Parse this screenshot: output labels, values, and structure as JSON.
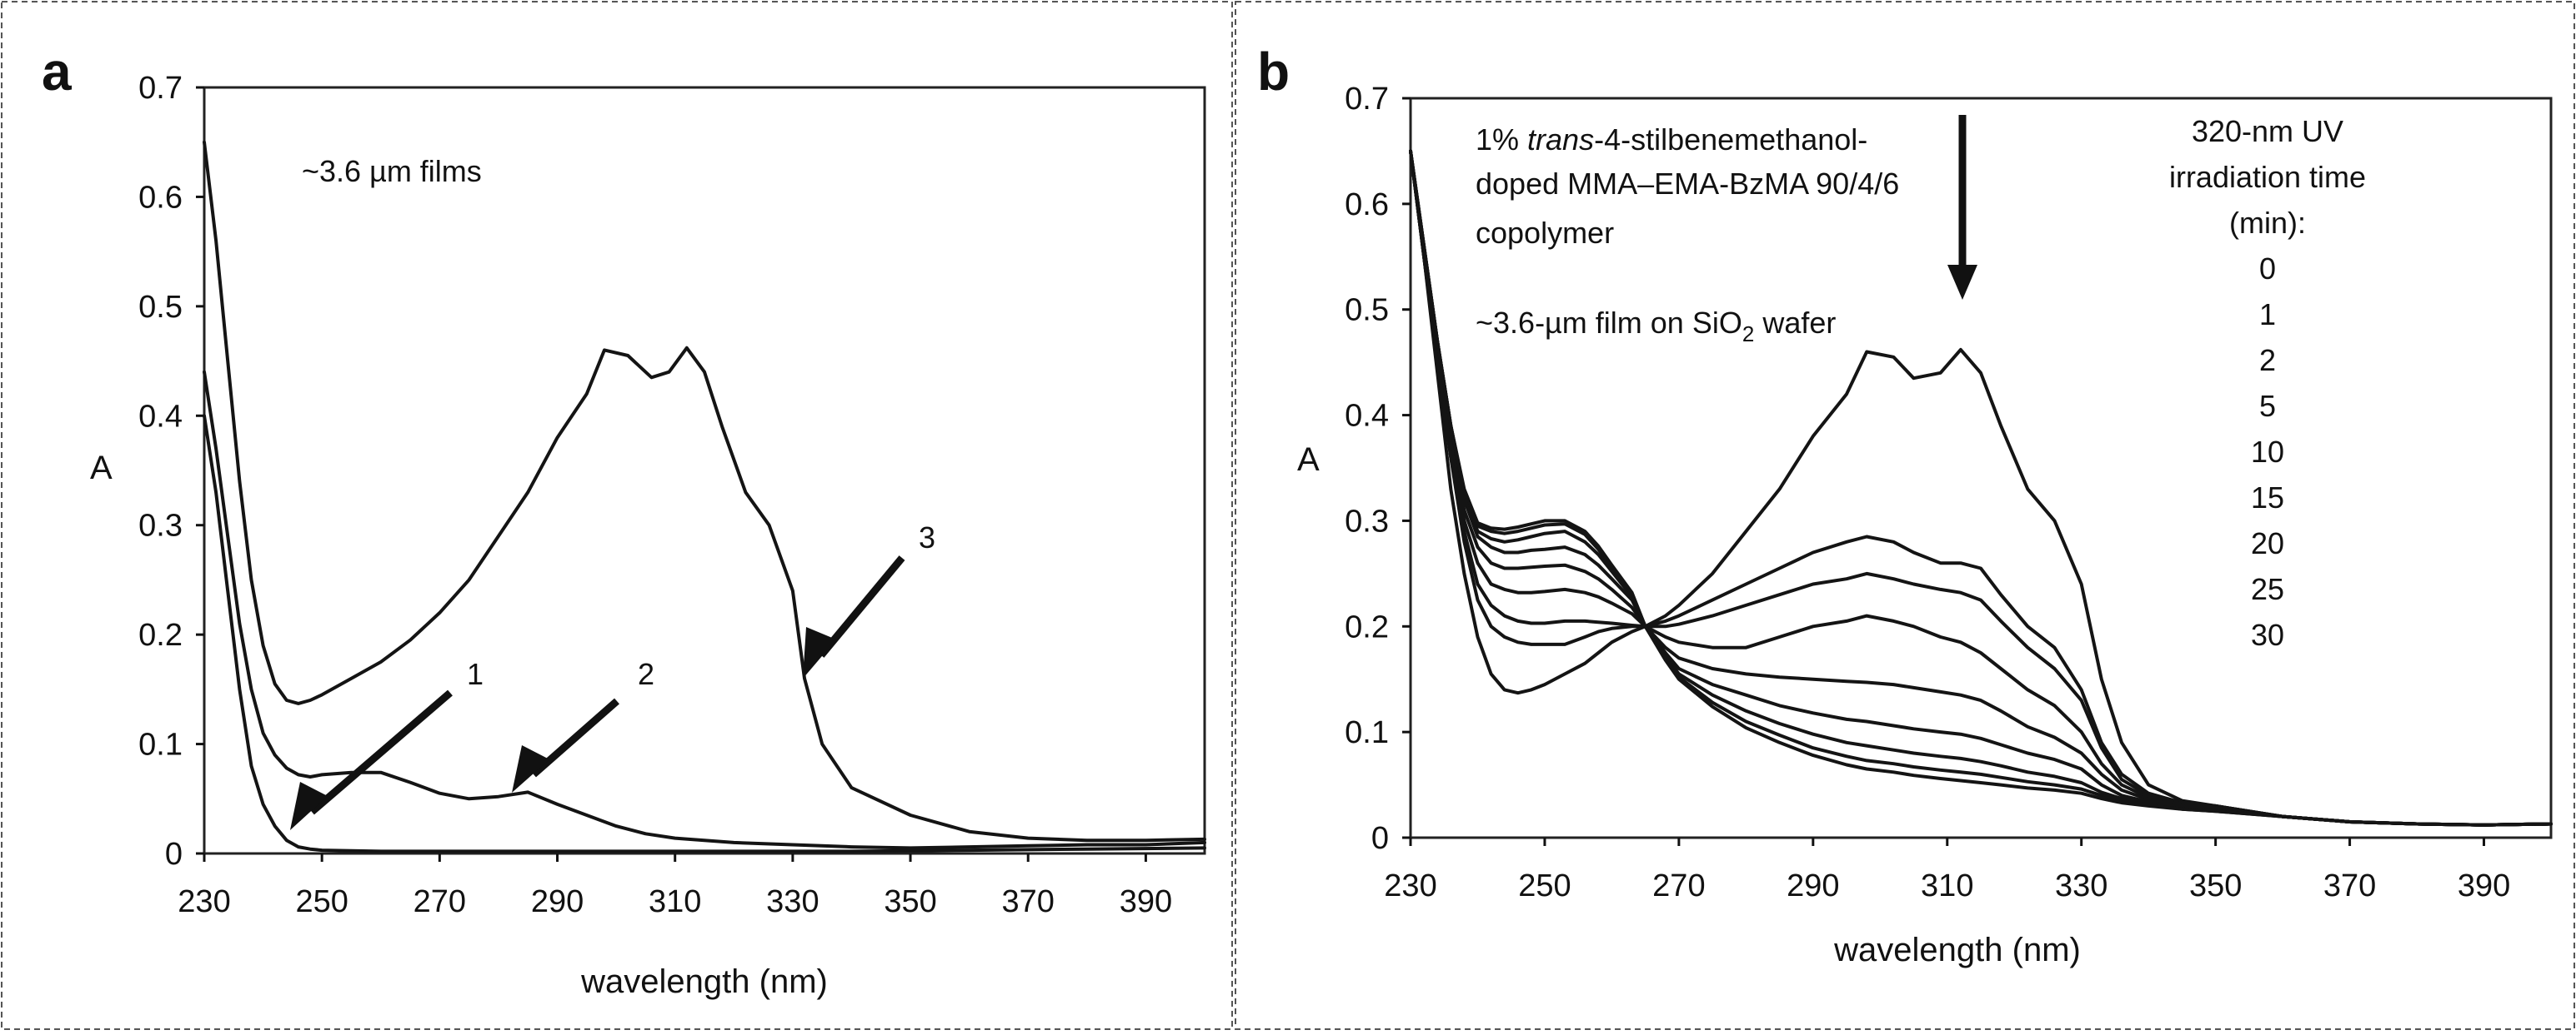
{
  "chart_data": [
    {
      "panel": "a",
      "type": "line",
      "xlabel": "wavelength (nm)",
      "ylabel": "A",
      "xlim": [
        230,
        400
      ],
      "ylim": [
        0,
        0.7
      ],
      "xticks": [
        230,
        250,
        270,
        290,
        310,
        330,
        350,
        370,
        390
      ],
      "yticks": [
        0,
        0.1,
        0.2,
        0.3,
        0.4,
        0.5,
        0.6,
        0.7
      ],
      "annotations": [
        {
          "text": "~3.6 µm films"
        },
        {
          "text": "1",
          "arrow_to": {
            "x": 245,
            "y": 0.02
          }
        },
        {
          "text": "2",
          "arrow_to": {
            "x": 283,
            "y": 0.055
          }
        },
        {
          "text": "3",
          "arrow_to": {
            "x": 332,
            "y": 0.16
          }
        }
      ],
      "series": [
        {
          "name": "1",
          "x": [
            230,
            232,
            234,
            236,
            238,
            240,
            242,
            244,
            246,
            248,
            250,
            260,
            280,
            300,
            320,
            340,
            360,
            380,
            400
          ],
          "y": [
            0.4,
            0.33,
            0.24,
            0.15,
            0.08,
            0.045,
            0.025,
            0.012,
            0.006,
            0.004,
            0.003,
            0.002,
            0.002,
            0.002,
            0.002,
            0.002,
            0.003,
            0.004,
            0.005
          ]
        },
        {
          "name": "2",
          "x": [
            230,
            232,
            234,
            236,
            238,
            240,
            242,
            244,
            246,
            248,
            250,
            255,
            260,
            265,
            270,
            275,
            280,
            285,
            290,
            295,
            300,
            305,
            310,
            320,
            330,
            340,
            350,
            360,
            370,
            380,
            390,
            400
          ],
          "y": [
            0.44,
            0.37,
            0.29,
            0.21,
            0.15,
            0.11,
            0.09,
            0.078,
            0.072,
            0.07,
            0.072,
            0.074,
            0.074,
            0.065,
            0.055,
            0.05,
            0.052,
            0.056,
            0.045,
            0.035,
            0.025,
            0.018,
            0.014,
            0.01,
            0.008,
            0.006,
            0.005,
            0.006,
            0.007,
            0.008,
            0.008,
            0.01
          ]
        },
        {
          "name": "3",
          "x": [
            230,
            232,
            234,
            236,
            238,
            240,
            242,
            244,
            246,
            248,
            250,
            255,
            260,
            265,
            270,
            275,
            280,
            285,
            290,
            295,
            298,
            302,
            306,
            309,
            312,
            315,
            318,
            322,
            326,
            330,
            332,
            335,
            340,
            350,
            360,
            370,
            380,
            390,
            400
          ],
          "y": [
            0.65,
            0.56,
            0.45,
            0.34,
            0.25,
            0.19,
            0.155,
            0.14,
            0.137,
            0.14,
            0.145,
            0.16,
            0.175,
            0.195,
            0.22,
            0.25,
            0.29,
            0.33,
            0.38,
            0.42,
            0.46,
            0.455,
            0.435,
            0.44,
            0.462,
            0.44,
            0.39,
            0.33,
            0.3,
            0.24,
            0.16,
            0.1,
            0.06,
            0.035,
            0.02,
            0.014,
            0.012,
            0.012,
            0.013
          ]
        }
      ]
    },
    {
      "panel": "b",
      "type": "line",
      "xlabel": "wavelength (nm)",
      "ylabel": "A",
      "xlim": [
        230,
        400
      ],
      "ylim": [
        0,
        0.7
      ],
      "xticks": [
        230,
        250,
        270,
        290,
        310,
        330,
        350,
        370,
        390
      ],
      "yticks": [
        0,
        0.1,
        0.2,
        0.3,
        0.4,
        0.5,
        0.6,
        0.7
      ],
      "annotations": [
        {
          "lines": [
            "1% |trans|-4-stilbenemethanol-",
            "doped MMA–EMA-BzMA 90/4/6",
            "copolymer"
          ]
        },
        {
          "text": "~3.6-µm film on SiO",
          "subscript": "2",
          "suffix": " wafer"
        },
        {
          "arrow_to": {
            "x": 312,
            "y": 0.5
          }
        }
      ],
      "legend": {
        "title": [
          "320-nm UV",
          "irradiation time",
          "(min):"
        ],
        "items": [
          "0",
          "1",
          "2",
          "5",
          "10",
          "15",
          "20",
          "25",
          "30"
        ]
      },
      "shared_x": [
        230,
        232,
        234,
        236,
        238,
        240,
        242,
        244,
        246,
        248,
        250,
        253,
        256,
        258,
        260,
        263,
        265,
        268,
        270,
        275,
        280,
        285,
        290,
        295,
        298,
        302,
        305,
        309,
        312,
        315,
        318,
        322,
        326,
        330,
        333,
        336,
        340,
        345,
        350,
        360,
        370,
        380,
        390,
        400
      ],
      "series": [
        {
          "name": "0",
          "y": [
            0.65,
            0.55,
            0.44,
            0.33,
            0.25,
            0.19,
            0.155,
            0.14,
            0.137,
            0.14,
            0.145,
            0.155,
            0.165,
            0.175,
            0.185,
            0.195,
            0.2,
            0.21,
            0.22,
            0.25,
            0.29,
            0.33,
            0.38,
            0.42,
            0.46,
            0.455,
            0.435,
            0.44,
            0.462,
            0.44,
            0.39,
            0.33,
            0.3,
            0.24,
            0.15,
            0.09,
            0.05,
            0.035,
            0.03,
            0.02,
            0.015,
            0.013,
            0.012,
            0.013
          ]
        },
        {
          "name": "1",
          "y": [
            0.65,
            0.55,
            0.45,
            0.36,
            0.28,
            0.225,
            0.2,
            0.19,
            0.185,
            0.183,
            0.183,
            0.183,
            0.19,
            0.195,
            0.198,
            0.2,
            0.2,
            0.205,
            0.21,
            0.225,
            0.24,
            0.255,
            0.27,
            0.28,
            0.285,
            0.28,
            0.27,
            0.26,
            0.26,
            0.255,
            0.23,
            0.2,
            0.18,
            0.14,
            0.09,
            0.06,
            0.042,
            0.033,
            0.03,
            0.02,
            0.015,
            0.013,
            0.012,
            0.013
          ]
        },
        {
          "name": "2",
          "y": [
            0.65,
            0.55,
            0.45,
            0.36,
            0.29,
            0.24,
            0.22,
            0.21,
            0.205,
            0.203,
            0.203,
            0.205,
            0.205,
            0.204,
            0.203,
            0.201,
            0.2,
            0.2,
            0.202,
            0.21,
            0.22,
            0.23,
            0.24,
            0.245,
            0.25,
            0.245,
            0.24,
            0.235,
            0.232,
            0.225,
            0.205,
            0.18,
            0.16,
            0.13,
            0.085,
            0.055,
            0.04,
            0.032,
            0.03,
            0.02,
            0.015,
            0.013,
            0.012,
            0.013
          ]
        },
        {
          "name": "5",
          "y": [
            0.65,
            0.55,
            0.45,
            0.37,
            0.3,
            0.26,
            0.24,
            0.235,
            0.232,
            0.232,
            0.233,
            0.235,
            0.232,
            0.228,
            0.222,
            0.212,
            0.2,
            0.19,
            0.185,
            0.18,
            0.18,
            0.19,
            0.2,
            0.205,
            0.21,
            0.205,
            0.2,
            0.19,
            0.185,
            0.175,
            0.16,
            0.14,
            0.125,
            0.1,
            0.07,
            0.05,
            0.038,
            0.031,
            0.029,
            0.02,
            0.015,
            0.013,
            0.012,
            0.013
          ]
        },
        {
          "name": "10",
          "y": [
            0.65,
            0.55,
            0.46,
            0.38,
            0.31,
            0.275,
            0.26,
            0.255,
            0.255,
            0.256,
            0.257,
            0.258,
            0.252,
            0.245,
            0.235,
            0.218,
            0.2,
            0.18,
            0.17,
            0.16,
            0.155,
            0.152,
            0.15,
            0.148,
            0.147,
            0.145,
            0.142,
            0.138,
            0.135,
            0.13,
            0.12,
            0.105,
            0.095,
            0.08,
            0.06,
            0.045,
            0.036,
            0.03,
            0.028,
            0.02,
            0.015,
            0.013,
            0.012,
            0.013
          ]
        },
        {
          "name": "15",
          "y": [
            0.65,
            0.56,
            0.47,
            0.39,
            0.32,
            0.285,
            0.275,
            0.27,
            0.27,
            0.272,
            0.273,
            0.275,
            0.268,
            0.258,
            0.245,
            0.225,
            0.2,
            0.175,
            0.16,
            0.145,
            0.135,
            0.125,
            0.118,
            0.112,
            0.11,
            0.106,
            0.103,
            0.1,
            0.098,
            0.094,
            0.088,
            0.08,
            0.074,
            0.065,
            0.05,
            0.04,
            0.034,
            0.029,
            0.027,
            0.02,
            0.015,
            0.013,
            0.012,
            0.013
          ]
        },
        {
          "name": "20",
          "y": [
            0.65,
            0.56,
            0.47,
            0.39,
            0.325,
            0.29,
            0.283,
            0.28,
            0.282,
            0.285,
            0.288,
            0.29,
            0.28,
            0.268,
            0.252,
            0.228,
            0.2,
            0.172,
            0.155,
            0.135,
            0.12,
            0.108,
            0.098,
            0.09,
            0.087,
            0.083,
            0.08,
            0.077,
            0.075,
            0.072,
            0.068,
            0.062,
            0.058,
            0.052,
            0.043,
            0.037,
            0.032,
            0.028,
            0.026,
            0.02,
            0.015,
            0.013,
            0.012,
            0.013
          ]
        },
        {
          "name": "25",
          "y": [
            0.65,
            0.56,
            0.47,
            0.39,
            0.328,
            0.295,
            0.29,
            0.288,
            0.29,
            0.293,
            0.296,
            0.297,
            0.287,
            0.273,
            0.256,
            0.23,
            0.2,
            0.17,
            0.152,
            0.128,
            0.11,
            0.097,
            0.085,
            0.077,
            0.073,
            0.07,
            0.067,
            0.064,
            0.062,
            0.06,
            0.057,
            0.053,
            0.05,
            0.046,
            0.04,
            0.035,
            0.031,
            0.027,
            0.025,
            0.02,
            0.015,
            0.013,
            0.012,
            0.013
          ]
        },
        {
          "name": "30",
          "y": [
            0.65,
            0.56,
            0.47,
            0.39,
            0.33,
            0.298,
            0.293,
            0.292,
            0.294,
            0.297,
            0.3,
            0.3,
            0.29,
            0.276,
            0.258,
            0.232,
            0.2,
            0.168,
            0.15,
            0.124,
            0.104,
            0.09,
            0.078,
            0.069,
            0.065,
            0.062,
            0.059,
            0.056,
            0.054,
            0.052,
            0.05,
            0.047,
            0.045,
            0.042,
            0.037,
            0.033,
            0.03,
            0.027,
            0.025,
            0.02,
            0.015,
            0.013,
            0.012,
            0.013
          ]
        }
      ]
    }
  ],
  "panels": {
    "a": {
      "letter": "a"
    },
    "b": {
      "letter": "b"
    }
  }
}
